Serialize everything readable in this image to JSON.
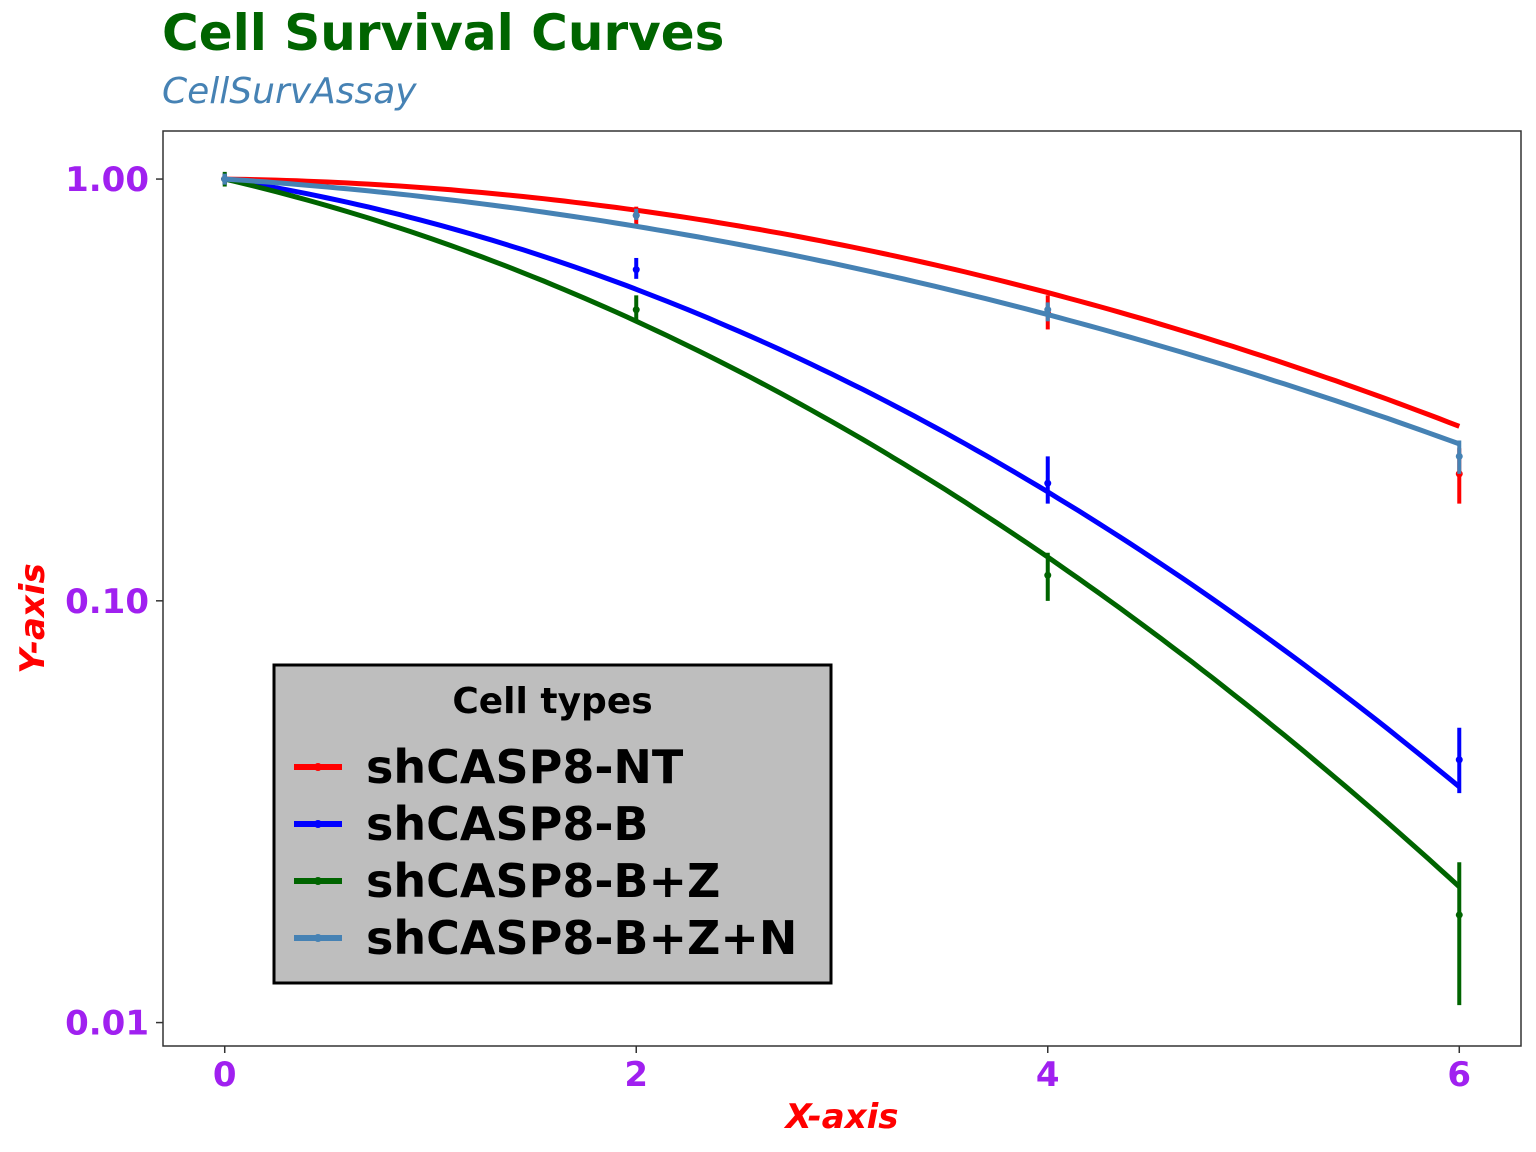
{
  "chart_data": {
    "type": "line",
    "title": "Cell Survival Curves",
    "subtitle": "CellSurvAssay",
    "xlabel": "X-axis",
    "ylabel": "Y-axis",
    "x": [
      0,
      2,
      4,
      6
    ],
    "x_ticks": [
      "0",
      "2",
      "4",
      "6"
    ],
    "y_ticks": [
      {
        "value": 1.0,
        "label": "1.00"
      },
      {
        "value": 0.1,
        "label": "0.10"
      },
      {
        "value": 0.01,
        "label": "0.01"
      }
    ],
    "xlim": [
      -0.3,
      6.3
    ],
    "ylim": [
      0.0088,
      1.3
    ],
    "y_scale": "log",
    "grid": false,
    "legend": {
      "title": "Cell types",
      "position": "bottom-left"
    },
    "colors": {
      "title": "#006400",
      "subtitle": "#4682b4",
      "tick_labels": "#a020f0",
      "axis_titles": "#ff0000",
      "legend_bg": "#bebebe"
    },
    "series": [
      {
        "name": "shCASP8-NT",
        "color": "#ff0000",
        "fit": {
          "alpha": 0.015,
          "beta": 0.035
        },
        "points": [
          {
            "x": 0,
            "y": 1.0,
            "lo": 0.97,
            "hi": 1.03
          },
          {
            "x": 2,
            "y": 0.82,
            "lo": 0.78,
            "hi": 0.86
          },
          {
            "x": 4,
            "y": 0.48,
            "lo": 0.44,
            "hi": 0.53
          },
          {
            "x": 6,
            "y": 0.2,
            "lo": 0.17,
            "hi": 0.23
          }
        ]
      },
      {
        "name": "shCASP8-B",
        "color": "#0000ff",
        "fit": {
          "alpha": 0.175,
          "beta": 0.063
        },
        "points": [
          {
            "x": 0,
            "y": 1.0,
            "lo": 0.97,
            "hi": 1.03
          },
          {
            "x": 2,
            "y": 0.61,
            "lo": 0.58,
            "hi": 0.65
          },
          {
            "x": 4,
            "y": 0.19,
            "lo": 0.17,
            "hi": 0.22
          },
          {
            "x": 6,
            "y": 0.042,
            "lo": 0.035,
            "hi": 0.05
          }
        ]
      },
      {
        "name": "shCASP8-B+Z",
        "color": "#006400",
        "fit": {
          "alpha": 0.26,
          "beta": 0.064
        },
        "points": [
          {
            "x": 0,
            "y": 1.0,
            "lo": 0.96,
            "hi": 1.04
          },
          {
            "x": 2,
            "y": 0.49,
            "lo": 0.46,
            "hi": 0.53
          },
          {
            "x": 4,
            "y": 0.115,
            "lo": 0.1,
            "hi": 0.13
          },
          {
            "x": 6,
            "y": 0.018,
            "lo": 0.011,
            "hi": 0.024
          }
        ]
      },
      {
        "name": "shCASP8-B+Z+N",
        "color": "#4682b4",
        "fit": {
          "alpha": 0.073,
          "beta": 0.028
        },
        "points": [
          {
            "x": 0,
            "y": 1.0,
            "lo": 0.97,
            "hi": 1.03
          },
          {
            "x": 2,
            "y": 0.82,
            "lo": 0.8,
            "hi": 0.85
          },
          {
            "x": 4,
            "y": 0.49,
            "lo": 0.46,
            "hi": 0.51
          },
          {
            "x": 6,
            "y": 0.22,
            "lo": 0.2,
            "hi": 0.24
          }
        ]
      }
    ]
  }
}
